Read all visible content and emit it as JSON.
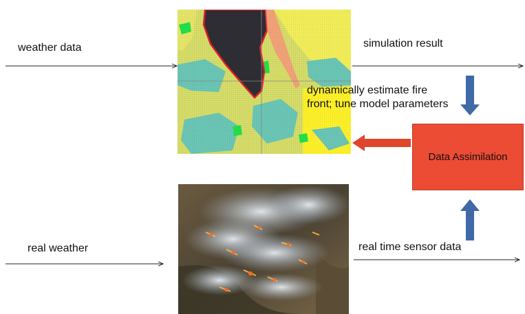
{
  "labels": {
    "weather_data": "weather data",
    "simulation_result": "simulation result",
    "estimate_text": "dynamically estimate fire front; tune model parameters",
    "data_assimilation": "Data Assimilation",
    "real_weather": "real weather",
    "sensor_data": "real time sensor data"
  },
  "colors": {
    "assimilation_box": "#ec4b34",
    "blue_arrow": "#3f6aa6",
    "red_arrow": "#e0462c",
    "burned_area": "#2e2e34",
    "fire_front": "#e0202a",
    "fuel_yellow_green": "#d8de6a",
    "fuel_teal": "#6cc7b6",
    "bright_green": "#22e24a",
    "yellow": "#fff22a"
  }
}
